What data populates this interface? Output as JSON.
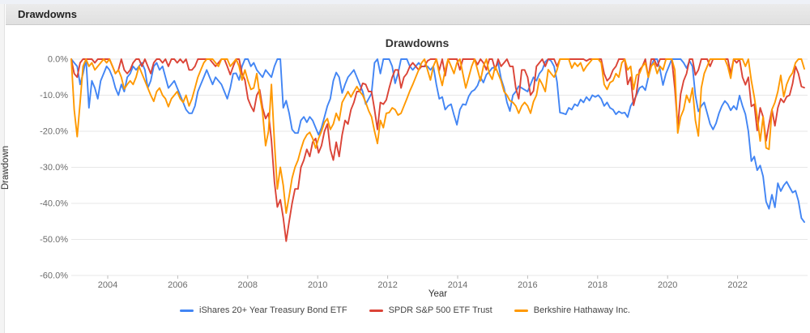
{
  "window": {
    "panel_title": "Drawdowns"
  },
  "chart_data": {
    "type": "line",
    "title": "Drawdowns",
    "xlabel": "Year",
    "ylabel": "Drawdown",
    "x_ticks": [
      "2004",
      "2006",
      "2008",
      "2010",
      "2012",
      "2014",
      "2016",
      "2018",
      "2020",
      "2022"
    ],
    "y_ticks": [
      "0.0%",
      "-10.0%",
      "-20.0%",
      "-30.0%",
      "-40.0%",
      "-50.0%",
      "-60.0%"
    ],
    "ylim": [
      -60,
      0
    ],
    "x_start": "2003-01",
    "x_end": "2023-10",
    "x_unit": "month",
    "grid": "horizontal",
    "legend_position": "bottom",
    "colors": {
      "grid": "#e7e7e7",
      "tick": "#bdbdbd",
      "tick_label": "#6b6b6b"
    },
    "series": [
      {
        "name": "iShares 20+ Year Treasury Bond ETF",
        "color": "#4285F4",
        "values": [
          0,
          -1,
          -2,
          -7,
          -4,
          0,
          -13.5,
          -6,
          -8,
          -11,
          -6,
          -4,
          -2,
          -3,
          -5,
          -8,
          -10,
          -7,
          -9,
          -5,
          -4,
          -2,
          -3,
          -2,
          -1,
          -3,
          -8,
          -6,
          -2,
          -1,
          -3,
          -2,
          -5,
          -8,
          -7,
          -6,
          -8,
          -10,
          -12,
          -14,
          -15,
          -15,
          -13,
          -9,
          -7,
          -5,
          -3,
          -5,
          -7,
          -5,
          -6,
          -7,
          -9,
          -11,
          -8,
          -4,
          -3.9,
          -5.8,
          -2,
          0,
          0,
          -2,
          -1,
          -3,
          -4,
          -5,
          -3,
          -4,
          -5,
          -2,
          0,
          0,
          -13.5,
          -11.5,
          -15,
          -19.5,
          -20.5,
          -20.5,
          -17,
          -16,
          -17.5,
          -16,
          -17,
          -19,
          -21,
          -19,
          -16,
          -13,
          -11,
          -6,
          -3.7,
          -5,
          -9.4,
          -7,
          -5,
          -4,
          -3,
          -5,
          -7,
          -9,
          -12.5,
          -11,
          -9.5,
          -1,
          0,
          -4,
          0,
          0,
          0,
          -2,
          -6.7,
          -4,
          0,
          0,
          0,
          -2,
          -3,
          -2,
          -1,
          -2,
          -2,
          -2,
          -3,
          -2,
          -7,
          -11,
          -10.5,
          -14,
          -13,
          -12.5,
          -15.5,
          -18.2,
          -14,
          -12.5,
          -12.7,
          -10.3,
          -9,
          -8.5,
          -7.3,
          -5,
          -6.5,
          -4.3,
          -3.5,
          -2.4,
          -2.4,
          -1,
          -5.4,
          -8,
          -12,
          -14.4,
          -10,
          -9,
          -7.5,
          -8,
          -8.5,
          -9,
          -7,
          -5,
          -6,
          -4,
          -3,
          -0.7,
          0,
          -0.5,
          -2,
          -6.3,
          -14.8,
          -15,
          -15.3,
          -13.5,
          -14,
          -12.5,
          -13,
          -11.2,
          -12,
          -10.5,
          -11.5,
          -10,
          -10.5,
          -10,
          -11,
          -13,
          -12,
          -13.5,
          -14,
          -15.3,
          -14.5,
          -15,
          -14.8,
          -16.1,
          -13,
          -11.6,
          -10,
          -8,
          -7.5,
          -8.6,
          -5,
          -2,
          0,
          0,
          -3,
          -7.2,
          -4,
          -2,
          0,
          0,
          0,
          0,
          -1,
          -2.5,
          -0.5,
          -2,
          -10,
          -14.5,
          -13,
          -12,
          -15,
          -18,
          -19.5,
          -17.8,
          -15,
          -13,
          -11.6,
          -12.5,
          -14.2,
          -13,
          -14,
          -10.1,
          -13,
          -15.3,
          -20,
          -28.3,
          -27,
          -30.8,
          -29.5,
          -32.5,
          -39.5,
          -41.5,
          -37.6,
          -41.1,
          -34.4,
          -36.6,
          -35,
          -34,
          -35.5,
          -37,
          -36.5,
          -39.3,
          -44.1,
          -45.2
        ]
      },
      {
        "name": "SPDR S&P 500 ETF Trust",
        "color": "#DB4437",
        "values": [
          0,
          -4,
          -5,
          -1,
          0,
          0,
          0,
          0,
          -1,
          0,
          0,
          0,
          0,
          0,
          -2,
          -4,
          -3,
          0,
          -3,
          -4,
          -3,
          -1,
          0,
          0,
          -2,
          0,
          -2,
          -4,
          -1,
          0,
          0,
          -1,
          0,
          -2,
          0,
          0,
          -1,
          0,
          -1,
          0,
          -3,
          -3,
          -2,
          0,
          0,
          0,
          0,
          0,
          -1,
          -2,
          -1,
          0,
          0,
          -2,
          -4.3,
          -2,
          0,
          0,
          -4,
          -5.8,
          -11,
          -13,
          -14.5,
          -10,
          -8.5,
          -13.5,
          -16.5,
          -15,
          -22.5,
          -34,
          -41,
          -39,
          -44,
          -50.5,
          -45,
          -40,
          -36,
          -36,
          -30,
          -28,
          -25,
          -27,
          -23,
          -22,
          -26,
          -24,
          -20,
          -18,
          -25,
          -28,
          -23,
          -27,
          -21,
          -17,
          -18,
          -14,
          -12,
          -9,
          -9,
          -6.7,
          -7,
          -9,
          -9,
          -14,
          -19.5,
          -12,
          -12.5,
          -11.3,
          -8,
          -5,
          -3,
          -3,
          -8,
          -5,
          -4,
          -2,
          -1,
          -2,
          -3,
          -2,
          -2,
          -0.5,
          0,
          0,
          0,
          -3.1,
          0,
          -4.6,
          0,
          0,
          0,
          0,
          -3,
          0,
          0,
          0,
          0,
          0,
          -1.5,
          0,
          -1,
          -3,
          0,
          0,
          -3,
          0,
          -2,
          -1,
          0,
          -2,
          -2,
          -8,
          -11,
          -3,
          -3,
          -5,
          -10,
          -8.8,
          -2,
          -1,
          0,
          -2,
          0,
          0,
          0,
          -2,
          0,
          0,
          0,
          0,
          0,
          0,
          0,
          0,
          0,
          -0.5,
          0,
          0,
          0,
          0,
          0,
          -4,
          -6,
          -5.1,
          -3,
          -2,
          0,
          0,
          0,
          -7,
          -5,
          -12.8,
          -9.4,
          -3,
          -2,
          0,
          -5,
          0,
          0,
          -2,
          0,
          0,
          0,
          0,
          0,
          -8,
          -18.8,
          -9.7,
          -6,
          -4,
          0,
          0,
          -4.4,
          -3,
          0,
          0,
          0,
          -2,
          0,
          0,
          0,
          0,
          0,
          0,
          -4,
          0,
          -1,
          0,
          -5,
          -7.1,
          -5,
          -13.1,
          -12.5,
          -19.8,
          -13.5,
          -16,
          -22.7,
          -18,
          -14,
          -18.5,
          -13.5,
          -11,
          -12,
          -10.4,
          -10,
          -6.8,
          -2,
          -4,
          -7.6,
          -7.9
        ]
      },
      {
        "name": "Berkshire Hathaway Inc.",
        "color": "#FF9900",
        "values": [
          0,
          -14,
          -21.5,
          -12,
          -2,
          0,
          -2,
          -1,
          -3,
          -2,
          -1,
          0,
          -1,
          0,
          -2,
          -4,
          -3,
          -5,
          -8.3,
          -7,
          -6,
          -7,
          -5,
          -2,
          -4,
          -6,
          -8,
          -10,
          -11.7,
          -9,
          -8,
          -10,
          -11,
          -13.2,
          -11,
          -10,
          -9,
          -11,
          -12,
          -10,
          -13,
          -11,
          -8,
          -5,
          -3,
          -1,
          0,
          0,
          0,
          -1,
          -2,
          0,
          0,
          0,
          -2,
          -1,
          0,
          -2,
          -5.8,
          -3,
          -6,
          -8.4,
          -8,
          -4,
          -10,
          -14.8,
          -24,
          -20,
          -7,
          -23,
          -36,
          -30,
          -35,
          -42.7,
          -38,
          -33,
          -30,
          -28,
          -25,
          -22.5,
          -21,
          -20.3,
          -22,
          -24.7,
          -22,
          -20,
          -17.5,
          -16.5,
          -19.5,
          -18,
          -15,
          -17,
          -12,
          -10.5,
          -9,
          -10.5,
          -9,
          -7.6,
          -9,
          -10,
          -12,
          -14.3,
          -16,
          -20,
          -23.4,
          -17,
          -19,
          -15,
          -14.8,
          -13.5,
          -14,
          -15.5,
          -15,
          -13,
          -11,
          -8.8,
          -7,
          -5,
          -3,
          -1,
          0,
          -3,
          -5.8,
          -2,
          0,
          -4,
          -7.3,
          -3,
          0,
          -2,
          -4,
          -1,
          0,
          -4,
          -8,
          -5,
          -2,
          0,
          -3,
          -6,
          -2,
          0,
          -4,
          -5.6,
          -2,
          -4,
          -6,
          -9,
          -10,
          -11.5,
          -12,
          -13,
          -15,
          -13,
          -12,
          -13,
          -15,
          -11.8,
          -10,
          -5.5,
          -7,
          -9,
          -2.9,
          -4,
          -5,
          -3,
          0,
          0,
          0,
          0,
          -2.5,
          -1,
          -2,
          -1,
          -3.3,
          -2,
          -1,
          0,
          0,
          0,
          -1,
          -7,
          -8.4,
          -6.5,
          -6,
          -4,
          -5,
          -1,
          0,
          -3,
          -2,
          -8.4,
          -4.4,
          -4,
          -2,
          -1,
          -5,
          -2,
          -1,
          -4,
          -2,
          -3,
          0,
          0,
          0,
          -3,
          -20.5,
          -16,
          -14,
          -10,
          -12,
          -8,
          -17,
          -21.3,
          -8,
          -4,
          -2,
          0,
          0,
          0,
          0,
          0,
          0,
          -2,
          -5.3,
          0,
          0,
          0,
          0,
          -2,
          0,
          -6,
          -10.5,
          -16,
          -22.7,
          -16,
          -24.6,
          -25,
          -14,
          -12,
          -9,
          -4.5,
          -10.4,
          -7,
          -5,
          -3.8,
          -1,
          0,
          0,
          -2.7
        ]
      }
    ]
  }
}
